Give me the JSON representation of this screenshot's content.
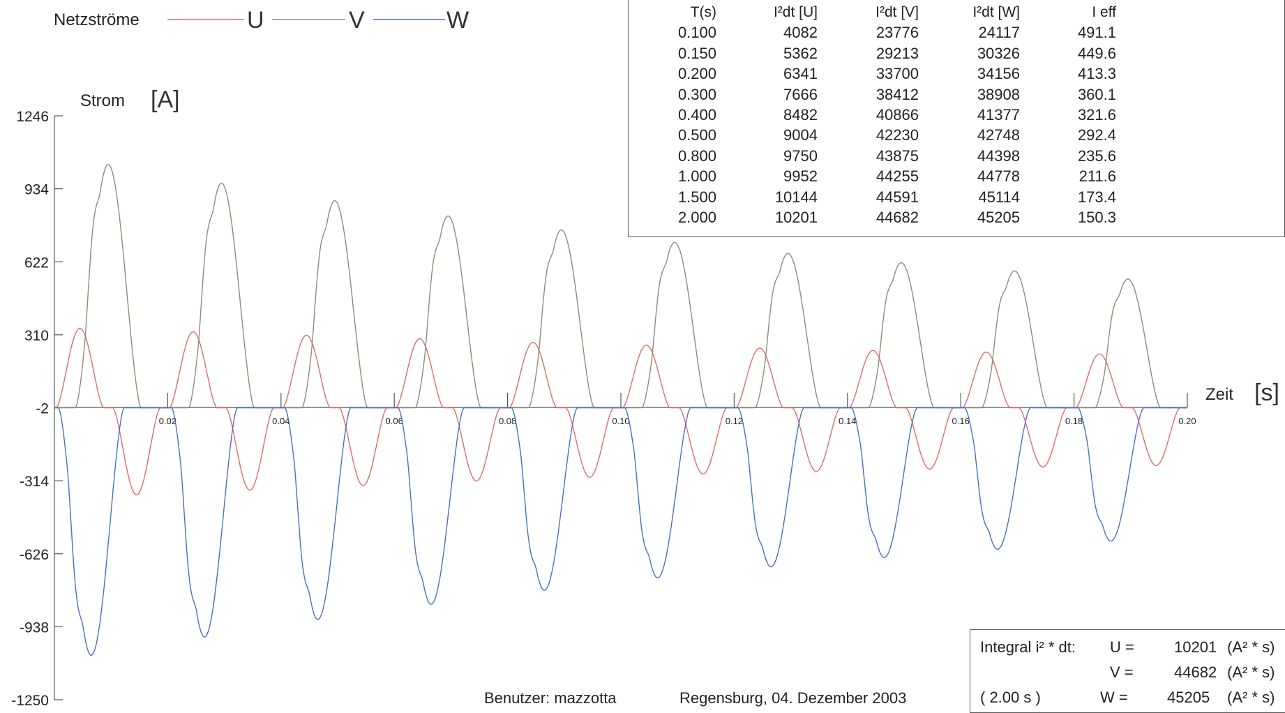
{
  "legend": {
    "title": "Netzströme",
    "items": [
      {
        "label": "U",
        "color": "#e06a6a"
      },
      {
        "label": "V",
        "color": "#8c8c7c"
      },
      {
        "label": "W",
        "color": "#4a6ec8"
      }
    ]
  },
  "chart_data": {
    "type": "line",
    "ylabel": "Strom",
    "ylabel_unit": "[A]",
    "xlabel": "Zeit",
    "xlabel_unit": "[s]",
    "ylim": [
      -1250,
      1246
    ],
    "xlim": [
      0,
      0.2
    ],
    "yticks": [
      "1246",
      "934",
      "622",
      "310",
      "-2",
      "-314",
      "-626",
      "-938",
      "-1250"
    ],
    "xticks": [
      "0.02",
      "0.04",
      "0.06",
      "0.08",
      "0.10",
      "0.12",
      "0.14",
      "0.16",
      "0.18",
      "0.20"
    ],
    "grid": false,
    "series": [
      {
        "name": "U",
        "color": "#e06a6a",
        "peak_times": [
          0.0045,
          0.0245,
          0.0445,
          0.0645,
          0.0845,
          0.1045,
          0.1245,
          0.1445,
          0.1645,
          0.1845
        ],
        "pos_peaks": [
          340,
          325,
          310,
          295,
          280,
          268,
          255,
          245,
          238,
          230
        ],
        "neg_peaks": [
          -372,
          -352,
          -332,
          -313,
          -297,
          -283,
          -272,
          -262,
          -253,
          -247
        ]
      },
      {
        "name": "V",
        "color": "#8c8c7c",
        "peak_times": [
          0.0095,
          0.0295,
          0.0495,
          0.0695,
          0.0895,
          0.1095,
          0.1295,
          0.1495,
          0.1695,
          0.1895
        ],
        "peaks": [
          1040,
          960,
          885,
          820,
          760,
          707,
          660,
          620,
          585,
          550
        ]
      },
      {
        "name": "W",
        "color": "#4a6ec8",
        "peak_times": [
          0.0065,
          0.0265,
          0.0465,
          0.0665,
          0.0865,
          0.1065,
          0.1265,
          0.1465,
          0.1665,
          0.1865
        ],
        "peaks": [
          -1058,
          -980,
          -905,
          -840,
          -780,
          -727,
          -680,
          -640,
          -605,
          -570
        ]
      }
    ]
  },
  "table": {
    "headers": [
      "T(s)",
      "I²dt [U]",
      "I²dt [V]",
      "I²dt [W]",
      "I eff"
    ],
    "rows": [
      [
        "0.100",
        "4082",
        "23776",
        "24117",
        "491.1"
      ],
      [
        "0.150",
        "5362",
        "29213",
        "30326",
        "449.6"
      ],
      [
        "0.200",
        "6341",
        "33700",
        "34156",
        "413.3"
      ],
      [
        "0.300",
        "7666",
        "38412",
        "38908",
        "360.1"
      ],
      [
        "0.400",
        "8482",
        "40866",
        "41377",
        "321.6"
      ],
      [
        "0.500",
        "9004",
        "42230",
        "42748",
        "292.4"
      ],
      [
        "0.800",
        "9750",
        "43875",
        "44398",
        "235.6"
      ],
      [
        "1.000",
        "9952",
        "44255",
        "44778",
        "211.6"
      ],
      [
        "1.500",
        "10144",
        "44591",
        "45114",
        "173.4"
      ],
      [
        "2.000",
        "10201",
        "44682",
        "45205",
        "150.3"
      ]
    ]
  },
  "summary": {
    "label": "Integral  i² * dt:",
    "duration": "( 2.00 s )",
    "rows": [
      {
        "name": "U =",
        "value": "10201",
        "unit": "(A² * s)"
      },
      {
        "name": "V =",
        "value": "44682",
        "unit": "(A² * s)"
      },
      {
        "name": "W =",
        "value": "45205",
        "unit": "(A² * s)"
      }
    ]
  },
  "footer": {
    "user": "Benutzer: mazzotta",
    "place_date": "Regensburg, 04. Dezember 2003"
  }
}
